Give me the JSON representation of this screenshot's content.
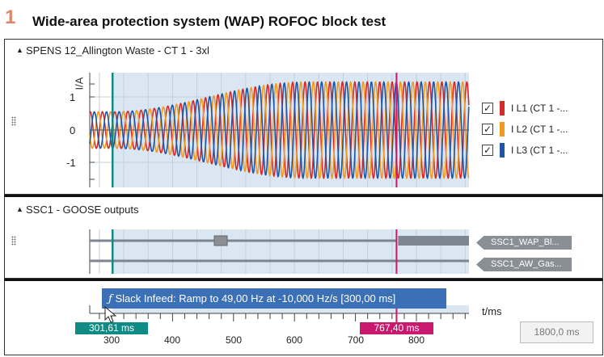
{
  "header": {
    "number": "1",
    "title": "Wide-area protection system (WAP) ROFOC block test"
  },
  "panel1": {
    "title": "SPENS 12_Allington Waste - CT 1 - 3xl",
    "y_label": "I/A",
    "y_ticks": [
      "1",
      "0",
      "-1"
    ],
    "legend": [
      {
        "label": "I L1 (CT 1 -...",
        "color": "#d42a2a",
        "checked": true
      },
      {
        "label": "I L2 (CT 1 -...",
        "color": "#f29a1f",
        "checked": true
      },
      {
        "label": "I L3 (CT 1 -...",
        "color": "#1e56a6",
        "checked": true
      }
    ],
    "check_mark": "✓"
  },
  "panel2": {
    "title": "SSC1 - GOOSE outputs",
    "signals": [
      "SSC1_WAP_Bl...",
      "SSC1_AW_Gas..."
    ]
  },
  "timeline": {
    "tooltip": "Slack Infeed: Ramp to 49,00 Hz at -10,000 Hz/s [300,00 ms]",
    "tooltip_icon": "ramp-function-icon",
    "axis_label": "t/ms",
    "ticks": [
      "300",
      "400",
      "500",
      "600",
      "700",
      "800"
    ],
    "cursor1": "301,61 ms",
    "cursor2": "767,40 ms",
    "duration": "1800,0 ms"
  },
  "colors": {
    "cursor1": "#0f8a85",
    "cursor2": "#c8196e",
    "tooltip": "#3b6fb6"
  }
}
